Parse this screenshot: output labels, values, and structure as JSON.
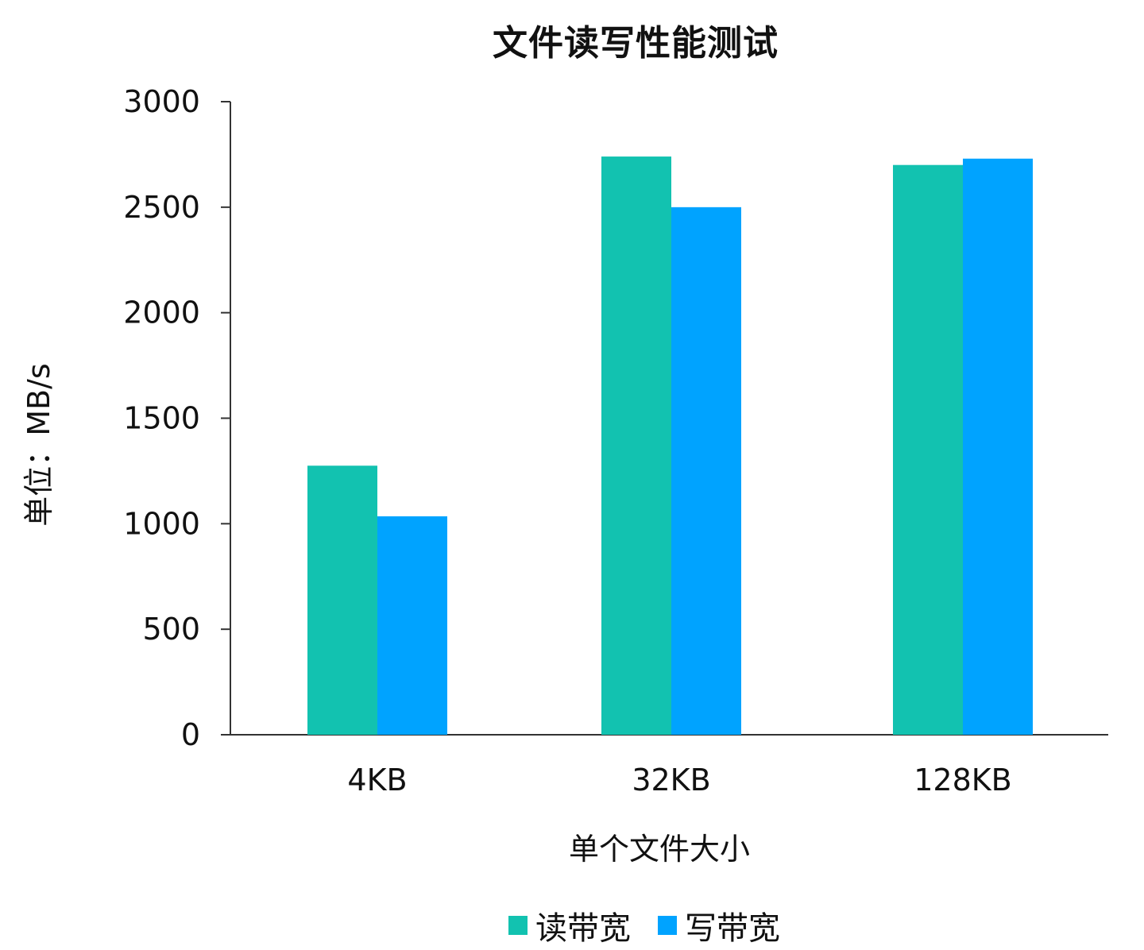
{
  "chart_data": {
    "type": "bar",
    "title": "文件读写性能测试",
    "xlabel": "单个文件大小",
    "ylabel": "单位：MB/s",
    "categories": [
      "4KB",
      "32KB",
      "128KB"
    ],
    "series": [
      {
        "name": "读带宽",
        "color": "#12c2b0",
        "values": [
          1275,
          2740,
          2700
        ]
      },
      {
        "name": "写带宽",
        "color": "#00a3ff",
        "values": [
          1035,
          2500,
          2730
        ]
      }
    ],
    "ylim": [
      0,
      3000
    ],
    "yticks": [
      0,
      500,
      1000,
      1500,
      2000,
      2500,
      3000
    ],
    "grid": false,
    "legend_position": "bottom"
  },
  "legend": [
    {
      "label": "读带宽",
      "color": "#12c2b0"
    },
    {
      "label": "写带宽",
      "color": "#00a3ff"
    }
  ]
}
